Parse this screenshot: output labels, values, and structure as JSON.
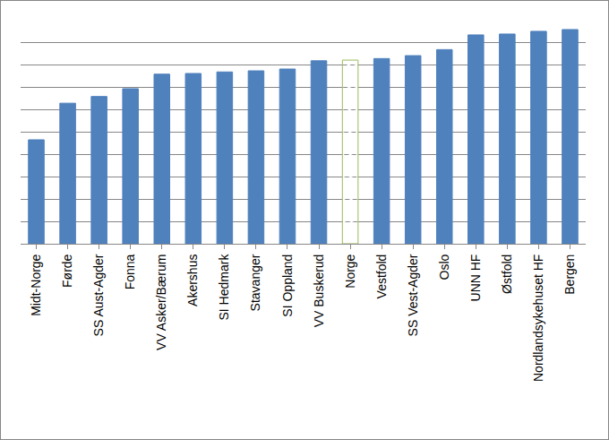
{
  "chart_data": {
    "type": "bar",
    "categories": [
      "Midt-Norge",
      "Førde",
      "SS Aust-Agder",
      "Fonna",
      "VV Asker/Bærum",
      "Akershus",
      "SI Hedmark",
      "Stavanger",
      "SI Oppland",
      "VV Buskerud",
      "Norge",
      "Vestfold",
      "SS Vest-Agder",
      "Oslo",
      "UNN HF",
      "Østfold",
      "Nordlandsykehuset HF",
      "Bergen"
    ],
    "values": [
      4.66,
      6.3,
      6.6,
      6.95,
      7.6,
      7.63,
      7.7,
      7.75,
      7.83,
      8.2,
      8.23,
      8.3,
      8.43,
      8.7,
      9.36,
      9.4,
      9.52,
      9.6
    ],
    "colors": [
      "#4f81bd",
      "#4f81bd",
      "#4f81bd",
      "#4f81bd",
      "#4f81bd",
      "#4f81bd",
      "#4f81bd",
      "#4f81bd",
      "#4f81bd",
      "#4f81bd",
      "#9bbb59",
      "#4f81bd",
      "#4f81bd",
      "#4f81bd",
      "#4f81bd",
      "#4f81bd",
      "#4f81bd",
      "#4f81bd"
    ],
    "ylim": [
      0,
      10
    ],
    "yticks": [
      0,
      1,
      2,
      3,
      4,
      5,
      6,
      7,
      8,
      9,
      10
    ],
    "grid": true,
    "tick_labels": "x"
  }
}
